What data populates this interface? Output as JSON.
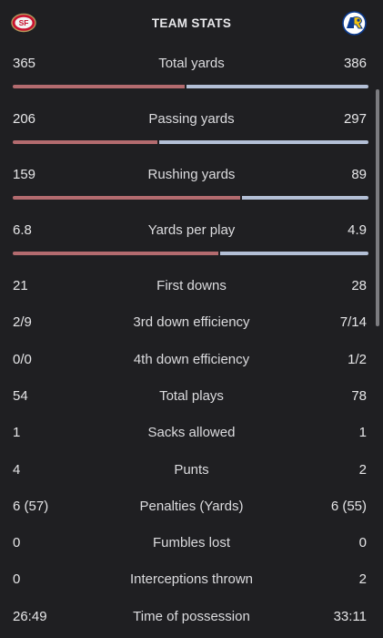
{
  "header": {
    "title": "TEAM STATS",
    "away_logo": "49ers-logo-icon",
    "home_logo": "rams-logo-icon"
  },
  "colors": {
    "background": "#1f1f22",
    "away_bar": "#b36b6f",
    "home_bar": "#b3bfd6"
  },
  "stats": [
    {
      "label": "Total yards",
      "away": "365",
      "home": "386",
      "bar": true,
      "away_share": 0.486
    },
    {
      "label": "Passing yards",
      "away": "206",
      "home": "297",
      "bar": true,
      "away_share": 0.41
    },
    {
      "label": "Rushing yards",
      "away": "159",
      "home": "89",
      "bar": true,
      "away_share": 0.641
    },
    {
      "label": "Yards per play",
      "away": "6.8",
      "home": "4.9",
      "bar": true,
      "away_share": 0.581
    },
    {
      "label": "First downs",
      "away": "21",
      "home": "28"
    },
    {
      "label": "3rd down efficiency",
      "away": "2/9",
      "home": "7/14"
    },
    {
      "label": "4th down efficiency",
      "away": "0/0",
      "home": "1/2"
    },
    {
      "label": "Total plays",
      "away": "54",
      "home": "78"
    },
    {
      "label": "Sacks allowed",
      "away": "1",
      "home": "1"
    },
    {
      "label": "Punts",
      "away": "4",
      "home": "2"
    },
    {
      "label": "Penalties (Yards)",
      "away": "6 (57)",
      "home": "6 (55)"
    },
    {
      "label": "Fumbles lost",
      "away": "0",
      "home": "0"
    },
    {
      "label": "Interceptions thrown",
      "away": "0",
      "home": "2"
    },
    {
      "label": "Time of possession",
      "away": "26:49",
      "home": "33:11"
    }
  ]
}
